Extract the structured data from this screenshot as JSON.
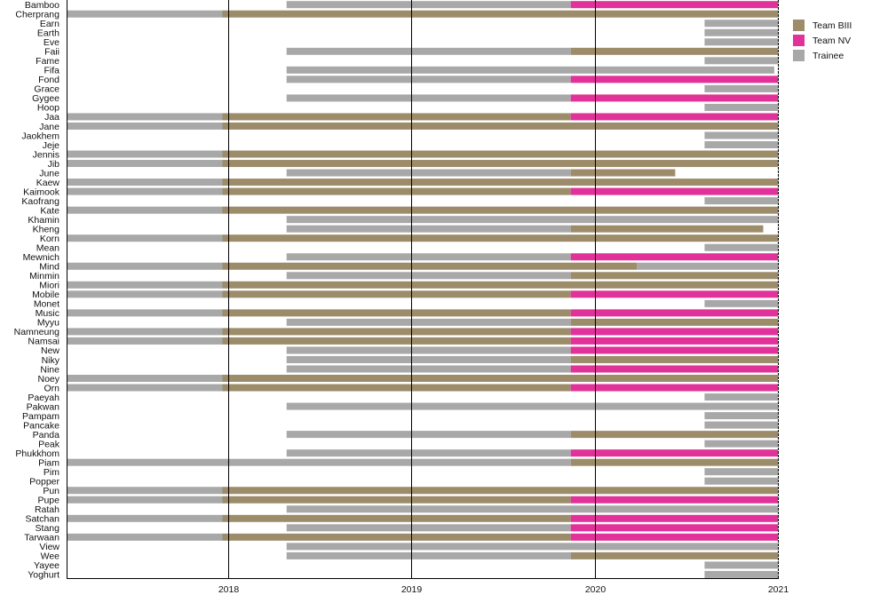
{
  "chart_data": {
    "type": "timeline",
    "title": "",
    "xlabel": "",
    "ylabel": "",
    "xlim": [
      2017.12,
      2021.0
    ],
    "x_ticks": [
      2018,
      2019,
      2020,
      2021
    ],
    "x_tick_labels": [
      "2018",
      "2019",
      "2020",
      "2021"
    ],
    "grid": "vertical lines at year ticks",
    "legend_position": "top-right",
    "legend": [
      {
        "name": "Team BIII",
        "color": "#9c8c6a"
      },
      {
        "name": "Team NV",
        "color": "#e1329a"
      },
      {
        "name": "Trainee",
        "color": "#a8a8a8"
      }
    ],
    "members": [
      {
        "name": "Bamboo",
        "segments": [
          [
            "Trainee",
            2018.32,
            2019.87
          ],
          [
            "Team NV",
            2019.87,
            2021
          ]
        ]
      },
      {
        "name": "Cherprang",
        "segments": [
          [
            "Trainee",
            2017.12,
            2017.97
          ],
          [
            "Team BIII",
            2017.97,
            2021
          ]
        ]
      },
      {
        "name": "Earn",
        "segments": [
          [
            "Trainee",
            2020.6,
            2021
          ]
        ]
      },
      {
        "name": "Earth",
        "segments": [
          [
            "Trainee",
            2020.6,
            2021
          ]
        ]
      },
      {
        "name": "Eve",
        "segments": [
          [
            "Trainee",
            2020.6,
            2021
          ]
        ]
      },
      {
        "name": "Faii",
        "segments": [
          [
            "Trainee",
            2018.32,
            2019.87
          ],
          [
            "Team BIII",
            2019.87,
            2021
          ]
        ]
      },
      {
        "name": "Fame",
        "segments": [
          [
            "Trainee",
            2020.6,
            2021
          ]
        ]
      },
      {
        "name": "Fifa",
        "segments": [
          [
            "Trainee",
            2018.32,
            2020.98
          ]
        ]
      },
      {
        "name": "Fond",
        "segments": [
          [
            "Trainee",
            2018.32,
            2019.87
          ],
          [
            "Team NV",
            2019.87,
            2021
          ]
        ]
      },
      {
        "name": "Grace",
        "segments": [
          [
            "Trainee",
            2020.6,
            2021
          ]
        ]
      },
      {
        "name": "Gygee",
        "segments": [
          [
            "Trainee",
            2018.32,
            2019.87
          ],
          [
            "Team NV",
            2019.87,
            2021
          ]
        ]
      },
      {
        "name": "Hoop",
        "segments": [
          [
            "Trainee",
            2020.6,
            2021
          ]
        ]
      },
      {
        "name": "Jaa",
        "segments": [
          [
            "Trainee",
            2017.12,
            2017.97
          ],
          [
            "Team BIII",
            2017.97,
            2019.87
          ],
          [
            "Team NV",
            2019.87,
            2021
          ]
        ]
      },
      {
        "name": "Jane",
        "segments": [
          [
            "Trainee",
            2017.12,
            2017.97
          ],
          [
            "Team BIII",
            2017.97,
            2021
          ]
        ]
      },
      {
        "name": "Jaokhem",
        "segments": [
          [
            "Trainee",
            2020.6,
            2021
          ]
        ]
      },
      {
        "name": "Jeje",
        "segments": [
          [
            "Trainee",
            2020.6,
            2021
          ]
        ]
      },
      {
        "name": "Jennis",
        "segments": [
          [
            "Trainee",
            2017.12,
            2017.97
          ],
          [
            "Team BIII",
            2017.97,
            2021
          ]
        ]
      },
      {
        "name": "Jib",
        "segments": [
          [
            "Trainee",
            2017.12,
            2017.97
          ],
          [
            "Team BIII",
            2017.97,
            2021
          ]
        ]
      },
      {
        "name": "June",
        "segments": [
          [
            "Trainee",
            2018.32,
            2019.87
          ],
          [
            "Team BIII",
            2019.87,
            2020.44
          ]
        ]
      },
      {
        "name": "Kaew",
        "segments": [
          [
            "Trainee",
            2017.12,
            2017.97
          ],
          [
            "Team BIII",
            2017.97,
            2021
          ]
        ]
      },
      {
        "name": "Kaimook",
        "segments": [
          [
            "Trainee",
            2017.12,
            2017.97
          ],
          [
            "Team BIII",
            2017.97,
            2019.87
          ],
          [
            "Team NV",
            2019.87,
            2021
          ]
        ]
      },
      {
        "name": "Kaofrang",
        "segments": [
          [
            "Trainee",
            2020.6,
            2021
          ]
        ]
      },
      {
        "name": "Kate",
        "segments": [
          [
            "Trainee",
            2017.12,
            2017.97
          ],
          [
            "Team BIII",
            2017.97,
            2021
          ]
        ]
      },
      {
        "name": "Khamin",
        "segments": [
          [
            "Trainee",
            2018.32,
            2021
          ]
        ]
      },
      {
        "name": "Kheng",
        "segments": [
          [
            "Trainee",
            2018.32,
            2019.87
          ],
          [
            "Team BIII",
            2019.87,
            2020.92
          ]
        ]
      },
      {
        "name": "Korn",
        "segments": [
          [
            "Trainee",
            2017.12,
            2017.97
          ],
          [
            "Team BIII",
            2017.97,
            2021
          ]
        ]
      },
      {
        "name": "Mean",
        "segments": [
          [
            "Trainee",
            2020.6,
            2021
          ]
        ]
      },
      {
        "name": "Mewnich",
        "segments": [
          [
            "Trainee",
            2018.32,
            2019.87
          ],
          [
            "Team NV",
            2019.87,
            2021
          ]
        ]
      },
      {
        "name": "Mind",
        "segments": [
          [
            "Trainee",
            2017.12,
            2017.97
          ],
          [
            "Team BIII",
            2017.97,
            2020.23
          ],
          [
            "Trainee",
            2020.23,
            2021
          ]
        ]
      },
      {
        "name": "Minmin",
        "segments": [
          [
            "Trainee",
            2018.32,
            2019.87
          ],
          [
            "Team BIII",
            2019.87,
            2021
          ]
        ]
      },
      {
        "name": "Miori",
        "segments": [
          [
            "Trainee",
            2017.12,
            2017.97
          ],
          [
            "Team BIII",
            2017.97,
            2021
          ]
        ]
      },
      {
        "name": "Mobile",
        "segments": [
          [
            "Trainee",
            2017.12,
            2017.97
          ],
          [
            "Team BIII",
            2017.97,
            2019.87
          ],
          [
            "Team NV",
            2019.87,
            2021
          ]
        ]
      },
      {
        "name": "Monet",
        "segments": [
          [
            "Trainee",
            2020.6,
            2021
          ]
        ]
      },
      {
        "name": "Music",
        "segments": [
          [
            "Trainee",
            2017.12,
            2017.97
          ],
          [
            "Team BIII",
            2017.97,
            2019.87
          ],
          [
            "Team NV",
            2019.87,
            2021
          ]
        ]
      },
      {
        "name": "Myyu",
        "segments": [
          [
            "Trainee",
            2018.32,
            2019.87
          ],
          [
            "Team BIII",
            2019.87,
            2021
          ]
        ]
      },
      {
        "name": "Namneung",
        "segments": [
          [
            "Trainee",
            2017.12,
            2017.97
          ],
          [
            "Team BIII",
            2017.97,
            2019.87
          ],
          [
            "Team NV",
            2019.87,
            2021
          ]
        ]
      },
      {
        "name": "Namsai",
        "segments": [
          [
            "Trainee",
            2017.12,
            2017.97
          ],
          [
            "Team BIII",
            2017.97,
            2019.87
          ],
          [
            "Team NV",
            2019.87,
            2021
          ]
        ]
      },
      {
        "name": "New",
        "segments": [
          [
            "Trainee",
            2018.32,
            2019.87
          ],
          [
            "Team NV",
            2019.87,
            2021
          ]
        ]
      },
      {
        "name": "Niky",
        "segments": [
          [
            "Trainee",
            2018.32,
            2019.87
          ],
          [
            "Team BIII",
            2019.87,
            2021
          ]
        ]
      },
      {
        "name": "Nine",
        "segments": [
          [
            "Trainee",
            2018.32,
            2019.87
          ],
          [
            "Team NV",
            2019.87,
            2021
          ]
        ]
      },
      {
        "name": "Noey",
        "segments": [
          [
            "Trainee",
            2017.12,
            2017.97
          ],
          [
            "Team BIII",
            2017.97,
            2021
          ]
        ]
      },
      {
        "name": "Orn",
        "segments": [
          [
            "Trainee",
            2017.12,
            2017.97
          ],
          [
            "Team BIII",
            2017.97,
            2019.87
          ],
          [
            "Team NV",
            2019.87,
            2021
          ]
        ]
      },
      {
        "name": "Paeyah",
        "segments": [
          [
            "Trainee",
            2020.6,
            2021
          ]
        ]
      },
      {
        "name": "Pakwan",
        "segments": [
          [
            "Trainee",
            2018.32,
            2021
          ]
        ]
      },
      {
        "name": "Pampam",
        "segments": [
          [
            "Trainee",
            2020.6,
            2021
          ]
        ]
      },
      {
        "name": "Pancake",
        "segments": [
          [
            "Trainee",
            2020.6,
            2021
          ]
        ]
      },
      {
        "name": "Panda",
        "segments": [
          [
            "Trainee",
            2018.32,
            2019.87
          ],
          [
            "Team BIII",
            2019.87,
            2021
          ]
        ]
      },
      {
        "name": "Peak",
        "segments": [
          [
            "Trainee",
            2020.6,
            2021
          ]
        ]
      },
      {
        "name": "Phukkhom",
        "segments": [
          [
            "Trainee",
            2018.32,
            2019.87
          ],
          [
            "Team NV",
            2019.87,
            2021
          ]
        ]
      },
      {
        "name": "Piam",
        "segments": [
          [
            "Trainee",
            2017.12,
            2019.87
          ],
          [
            "Team BIII",
            2019.87,
            2021
          ]
        ]
      },
      {
        "name": "Pim",
        "segments": [
          [
            "Trainee",
            2020.6,
            2021
          ]
        ]
      },
      {
        "name": "Popper",
        "segments": [
          [
            "Trainee",
            2020.6,
            2021
          ]
        ]
      },
      {
        "name": "Pun",
        "segments": [
          [
            "Trainee",
            2017.12,
            2017.97
          ],
          [
            "Team BIII",
            2017.97,
            2021
          ]
        ]
      },
      {
        "name": "Pupe",
        "segments": [
          [
            "Trainee",
            2017.12,
            2017.97
          ],
          [
            "Team BIII",
            2017.97,
            2019.87
          ],
          [
            "Team NV",
            2019.87,
            2021
          ]
        ]
      },
      {
        "name": "Ratah",
        "segments": [
          [
            "Trainee",
            2018.32,
            2021
          ]
        ]
      },
      {
        "name": "Satchan",
        "segments": [
          [
            "Trainee",
            2017.12,
            2017.97
          ],
          [
            "Team BIII",
            2017.97,
            2019.87
          ],
          [
            "Team NV",
            2019.87,
            2021
          ]
        ]
      },
      {
        "name": "Stang",
        "segments": [
          [
            "Trainee",
            2018.32,
            2019.87
          ],
          [
            "Team NV",
            2019.87,
            2021
          ]
        ]
      },
      {
        "name": "Tarwaan",
        "segments": [
          [
            "Trainee",
            2017.12,
            2017.97
          ],
          [
            "Team BIII",
            2017.97,
            2019.87
          ],
          [
            "Team NV",
            2019.87,
            2021
          ]
        ]
      },
      {
        "name": "View",
        "segments": [
          [
            "Trainee",
            2018.32,
            2021
          ]
        ]
      },
      {
        "name": "Wee",
        "segments": [
          [
            "Trainee",
            2018.32,
            2019.87
          ],
          [
            "Team BIII",
            2019.87,
            2021
          ]
        ]
      },
      {
        "name": "Yayee",
        "segments": [
          [
            "Trainee",
            2020.6,
            2021
          ]
        ]
      },
      {
        "name": "Yoghurt",
        "segments": [
          [
            "Trainee",
            2020.6,
            2021
          ]
        ]
      }
    ]
  }
}
